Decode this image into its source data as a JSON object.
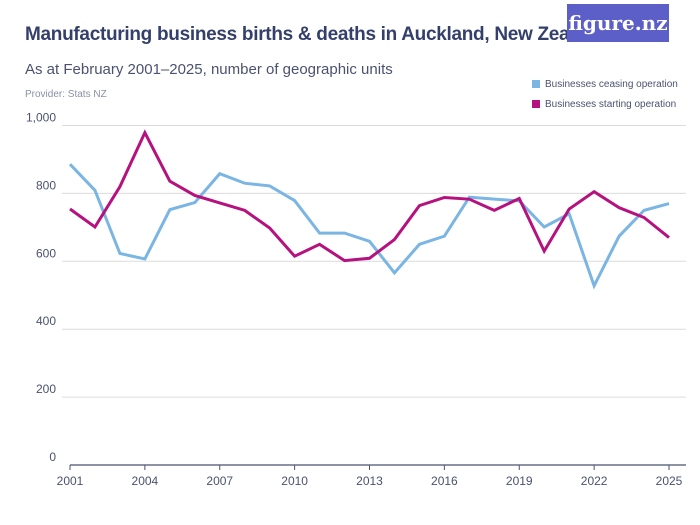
{
  "header": {
    "title": "Manufacturing business births & deaths in Auckland, New Zealand",
    "subtitle": "As at February 2001–2025, number of geographic units",
    "provider": "Provider: Stats NZ",
    "logo": "figure.nz",
    "logo_color": "#5b5fc7"
  },
  "chart_data": {
    "type": "line",
    "title": "Manufacturing business births & deaths in Auckland, New Zealand",
    "subtitle": "As at February 2001–2025, number of geographic units",
    "x": [
      2001,
      2002,
      2003,
      2004,
      2005,
      2006,
      2007,
      2008,
      2009,
      2010,
      2011,
      2012,
      2013,
      2014,
      2015,
      2016,
      2017,
      2018,
      2019,
      2020,
      2021,
      2022,
      2023,
      2024,
      2025
    ],
    "xticks": [
      "2001",
      "2004",
      "2007",
      "2010",
      "2013",
      "2016",
      "2019",
      "2022",
      "2025"
    ],
    "yticks": [
      "0",
      "200",
      "400",
      "600",
      "800",
      "1,000"
    ],
    "ylim": [
      0,
      1000
    ],
    "xlim": [
      2001,
      2025
    ],
    "grid": true,
    "legend_position": "top-right",
    "series": [
      {
        "name": "Businesses ceasing operation",
        "color": "#7ab5e3",
        "values": [
          886,
          809,
          623,
          607,
          752,
          773,
          858,
          830,
          822,
          779,
          683,
          683,
          659,
          566,
          650,
          674,
          789,
          783,
          778,
          701,
          740,
          528,
          674,
          750,
          770
        ]
      },
      {
        "name": "Businesses starting operation",
        "color": "#b5117f",
        "values": [
          754,
          701,
          820,
          979,
          836,
          794,
          772,
          750,
          698,
          615,
          650,
          602,
          609,
          664,
          764,
          788,
          783,
          750,
          785,
          630,
          754,
          805,
          758,
          729,
          670
        ]
      }
    ]
  }
}
